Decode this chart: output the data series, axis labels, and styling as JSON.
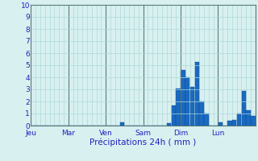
{
  "title": "",
  "xlabel": "Précipitations 24h ( mm )",
  "ylabel": "",
  "ylim": [
    0,
    10
  ],
  "yticks": [
    0,
    1,
    2,
    3,
    4,
    5,
    6,
    7,
    8,
    9,
    10
  ],
  "background_color": "#d8f0f0",
  "bar_color": "#1a6abf",
  "bar_edge_color": "#0a4a9f",
  "grid_color": "#afd8d8",
  "axis_label_color": "#2222bb",
  "tick_label_color": "#2222bb",
  "day_labels": [
    "Jeu",
    "Mar",
    "Ven",
    "Sam",
    "Dim",
    "Lun"
  ],
  "n_bars": 48,
  "bar_values": [
    0,
    0,
    0,
    0,
    0,
    0,
    0,
    0,
    0,
    0,
    0,
    0,
    0,
    0,
    0,
    0,
    0,
    0,
    0,
    0.3,
    0,
    0,
    0,
    0,
    0,
    0,
    0,
    0,
    0,
    0.2,
    1.7,
    3.1,
    4.6,
    4.0,
    3.2,
    5.3,
    2.0,
    1.0,
    0,
    0,
    0.3,
    0,
    0.4,
    0.5,
    1.0,
    2.9,
    1.3,
    0.8
  ]
}
